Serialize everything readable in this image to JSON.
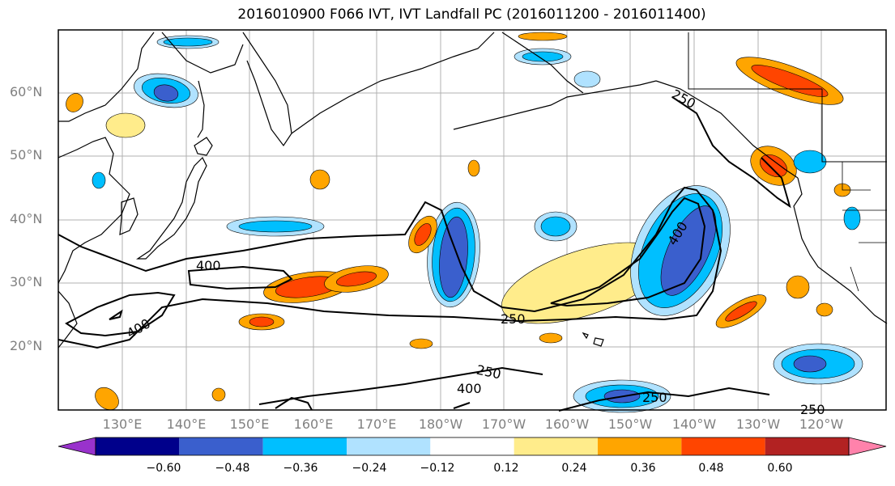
{
  "title": "2016010900 F066 IVT, IVT Landfall PC (2016011200 - 2016011400)",
  "lat_labels": [
    "60°N",
    "50°N",
    "40°N",
    "30°N",
    "20°N"
  ],
  "lon_labels": [
    "130°E",
    "140°E",
    "150°E",
    "160°E",
    "170°E",
    "180°W",
    "170°W",
    "160°W",
    "150°W",
    "140°W",
    "130°W",
    "120°W"
  ],
  "contour_labels": [
    "250",
    "400",
    "400",
    "400",
    "250",
    "250",
    "400",
    "250",
    "250"
  ],
  "colorbar": {
    "colors": [
      "#9932cc",
      "#00008b",
      "#3a5fcd",
      "#00bfff",
      "#b0e2ff",
      "#ffffff",
      "#ffec8b",
      "#ffa500",
      "#ff4500",
      "#b22222",
      "#ff82ab"
    ],
    "tick_labels": [
      "−0.60",
      "−0.48",
      "−0.36",
      "−0.24",
      "−0.12",
      "0.12",
      "0.24",
      "0.36",
      "0.48",
      "0.60"
    ],
    "extend": "both"
  },
  "map_colors": {
    "grid": "#b0b0b0",
    "coast": "#000000",
    "contour": "#000000"
  }
}
